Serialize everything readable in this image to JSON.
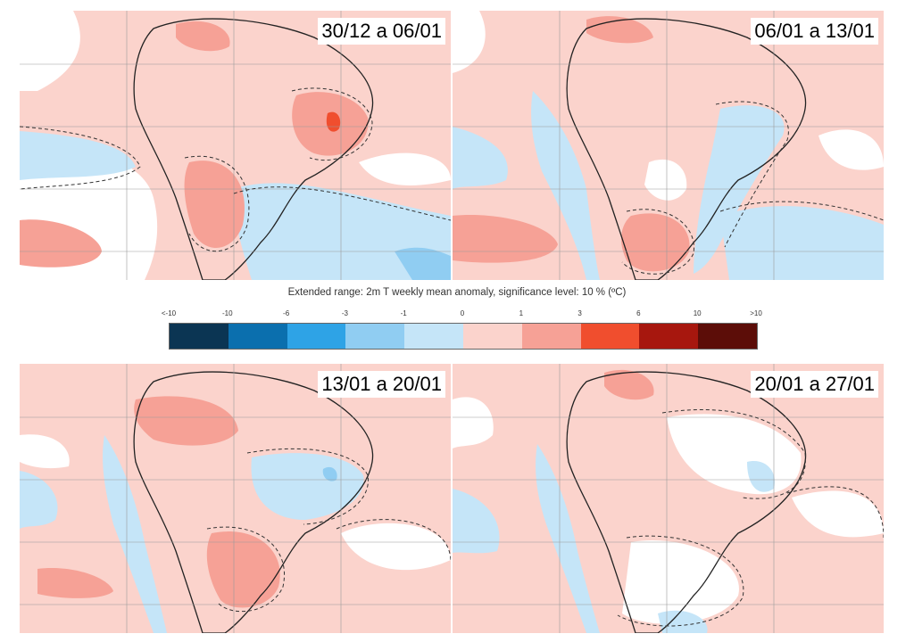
{
  "panels": [
    {
      "title": "30/12 a 06/01"
    },
    {
      "title": "06/01 a 13/01"
    },
    {
      "title": "13/01 a 20/01"
    },
    {
      "title": "20/01 a 27/01"
    }
  ],
  "legend": {
    "title": "Extended range: 2m T weekly mean anomaly, significance level: 10 % (ºC)",
    "ticks": [
      "<-10",
      "-10",
      "-6",
      "-3",
      "-1",
      "0",
      "1",
      "3",
      "6",
      "10",
      ">10"
    ],
    "colors": [
      "#0b3553",
      "#0b6fae",
      "#2ea3e6",
      "#90cdf2",
      "#c5e5f8",
      "#fbd3cc",
      "#f6a196",
      "#f04e2e",
      "#a7170e",
      "#5c0d08"
    ]
  },
  "map_colors": {
    "ocean_neutral": "#ffffff",
    "warm_1": "#fbd3cc",
    "warm_2": "#f6a196",
    "warm_3": "#f04e2e",
    "cool_1": "#c5e5f8",
    "cool_2": "#90cdf2"
  }
}
